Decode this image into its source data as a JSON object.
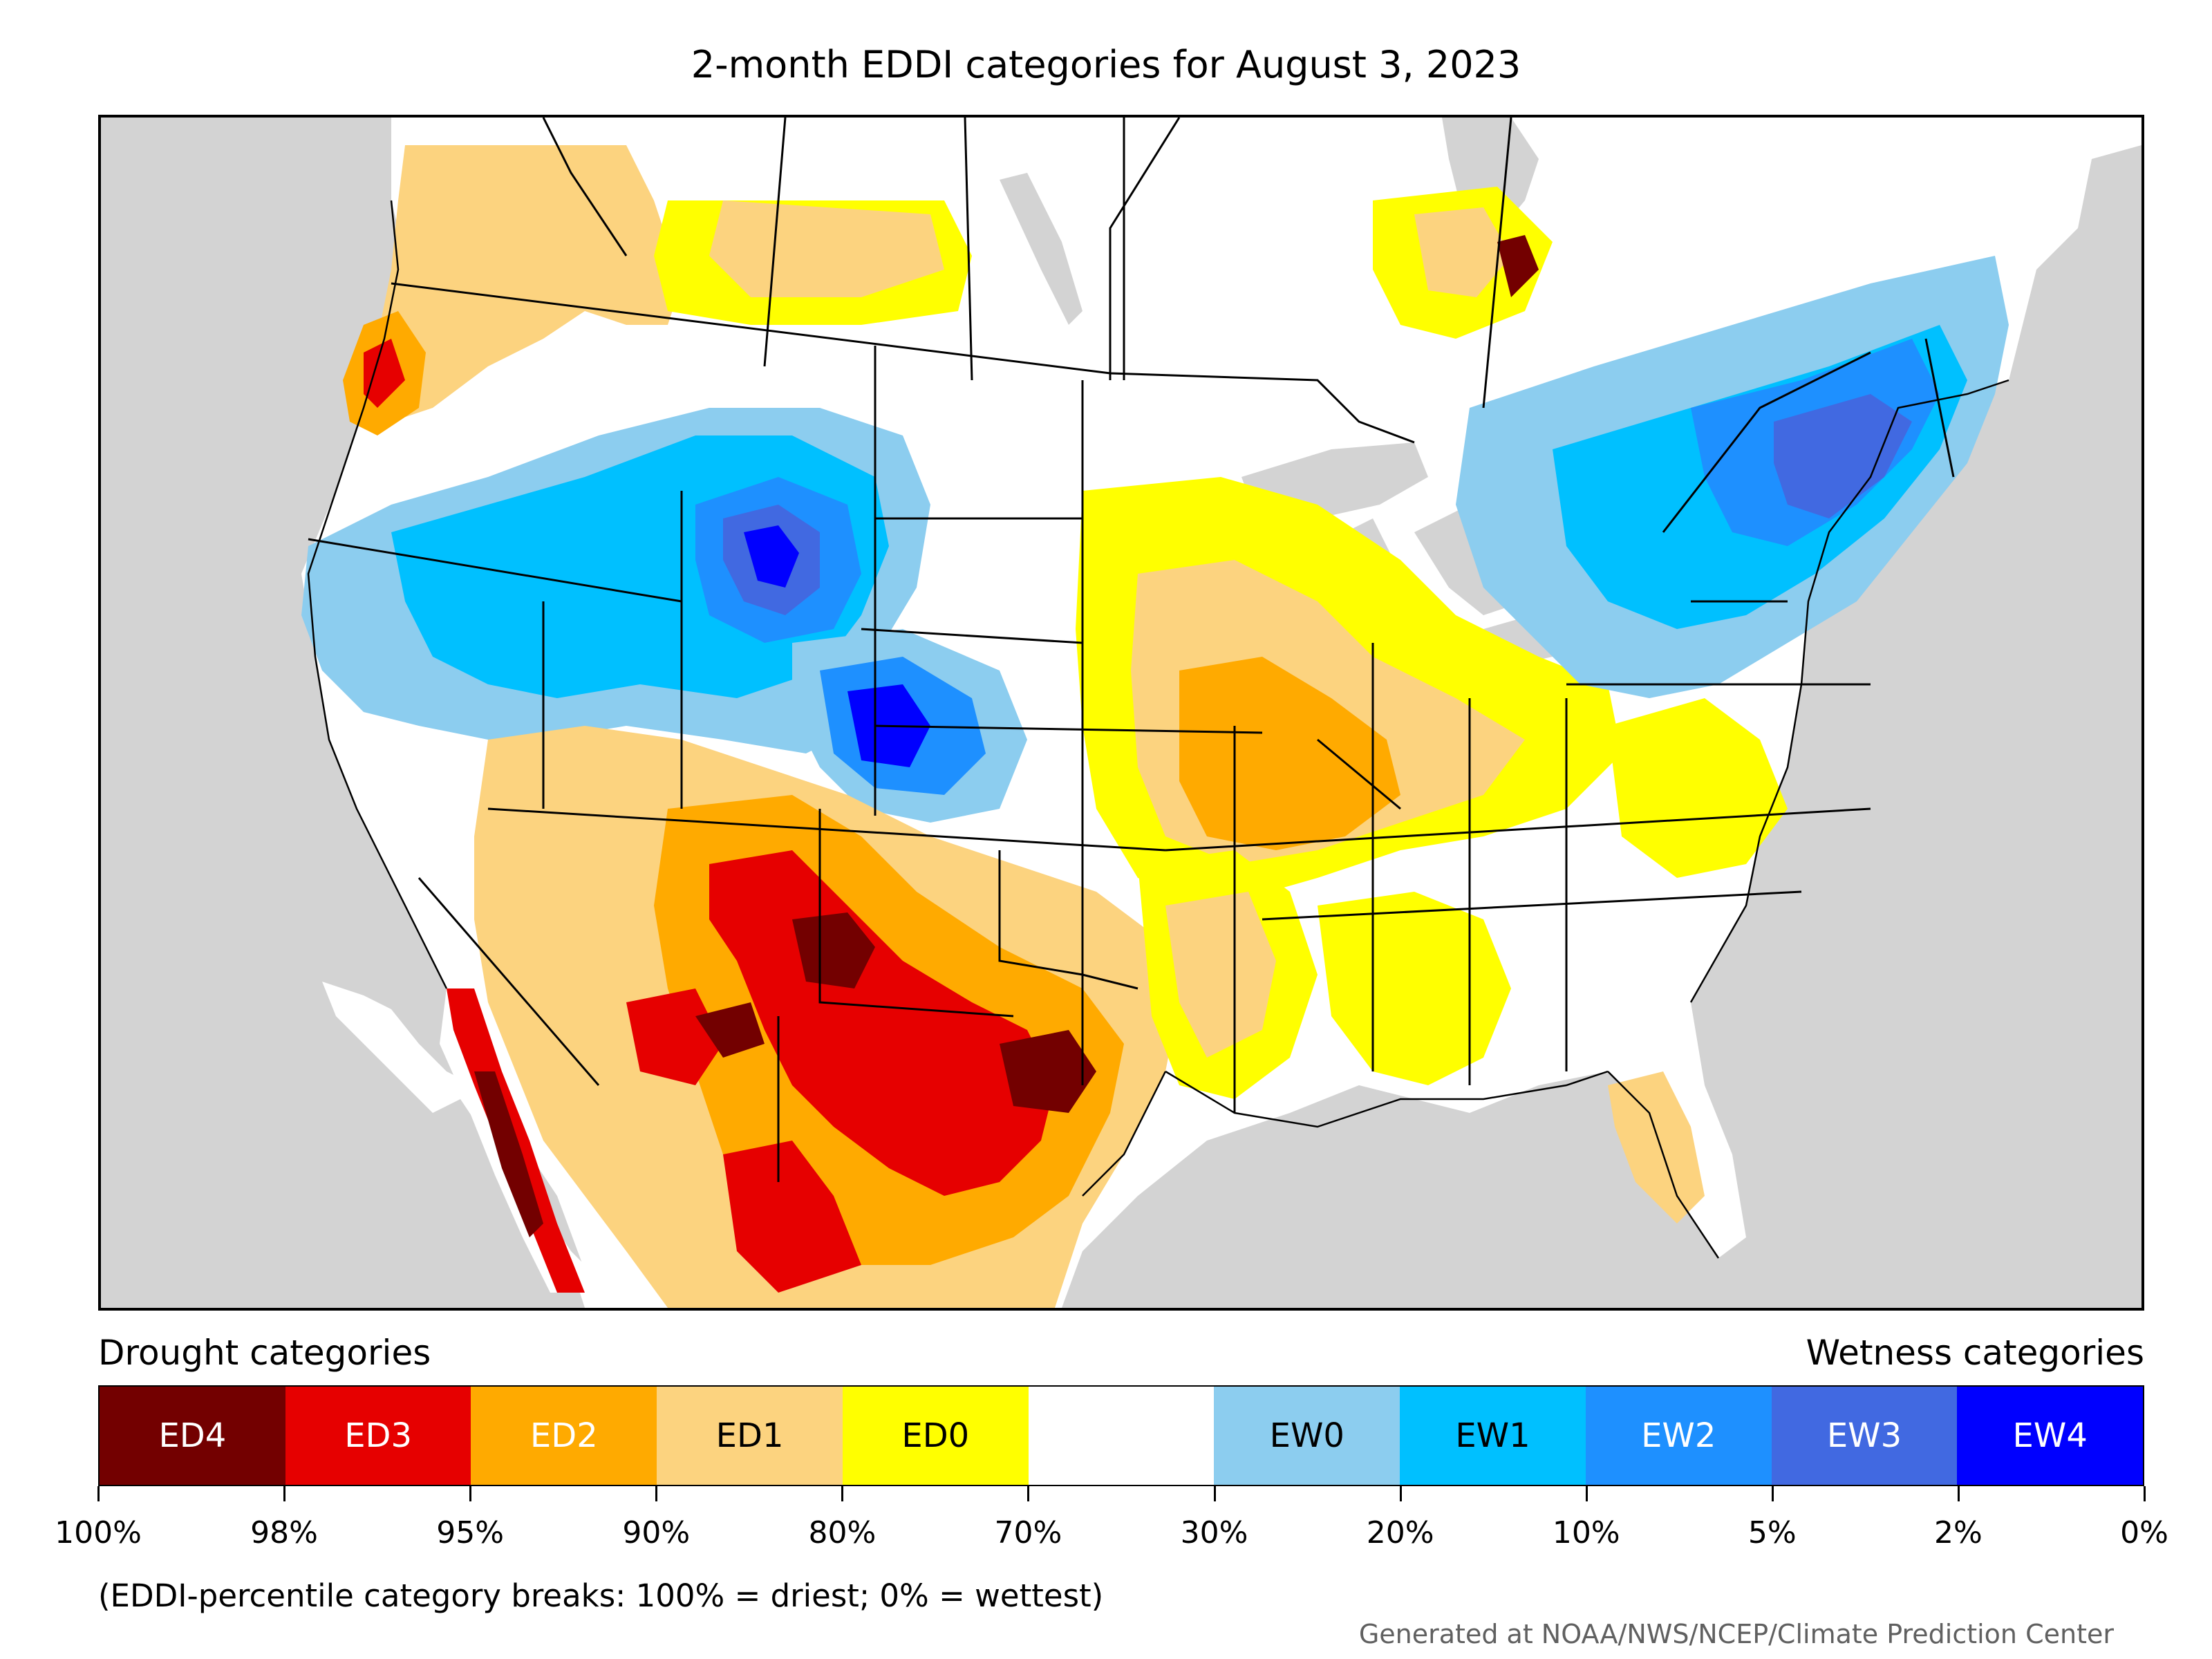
{
  "title": "2-month EDDI categories for August 3, 2023",
  "legend": {
    "drought_heading": "Drought categories",
    "wetness_heading": "Wetness categories",
    "categories": [
      {
        "label": "ED4",
        "color": "#730000",
        "text_color": "#ffffff"
      },
      {
        "label": "ED3",
        "color": "#e60000",
        "text_color": "#ffffff"
      },
      {
        "label": "ED2",
        "color": "#ffaa00",
        "text_color": "#ffffff"
      },
      {
        "label": "ED1",
        "color": "#fcd37f",
        "text_color": "#000000"
      },
      {
        "label": "ED0",
        "color": "#ffff00",
        "text_color": "#000000"
      },
      {
        "label": "",
        "color": "#ffffff",
        "text_color": "#000000"
      },
      {
        "label": "EW0",
        "color": "#8ccdef",
        "text_color": "#000000"
      },
      {
        "label": "EW1",
        "color": "#00c0ff",
        "text_color": "#000000"
      },
      {
        "label": "EW2",
        "color": "#1e90ff",
        "text_color": "#ffffff"
      },
      {
        "label": "EW3",
        "color": "#4169e1",
        "text_color": "#ffffff"
      },
      {
        "label": "EW4",
        "color": "#0000ff",
        "text_color": "#ffffff"
      }
    ],
    "ticks": [
      "100%",
      "98%",
      "95%",
      "90%",
      "80%",
      "70%",
      "30%",
      "20%",
      "10%",
      "5%",
      "2%",
      "0%"
    ]
  },
  "note": "(EDDI-percentile category breaks: 100% = driest; 0% = wettest)",
  "credit": "Generated at NOAA/NWS/NCEP/Climate Prediction Center",
  "map": {
    "ocean_color": "#d3d3d3",
    "land_color": "#ffffff",
    "border_color": "#000000"
  }
}
